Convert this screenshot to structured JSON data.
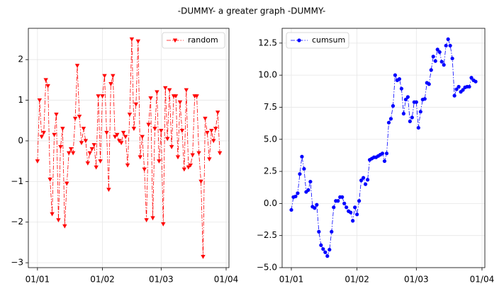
{
  "title": "-DUMMY-  a greater graph -DUMMY-",
  "chart_data": [
    {
      "type": "line",
      "x": [
        0,
        1,
        2,
        3,
        4,
        5,
        6,
        7,
        8,
        9,
        10,
        11,
        12,
        13,
        14,
        15,
        16,
        17,
        18,
        19,
        20,
        21,
        22,
        23,
        24,
        25,
        26,
        27,
        28,
        29,
        30,
        31,
        32,
        33,
        34,
        35,
        36,
        37,
        38,
        39,
        40,
        41,
        42,
        43,
        44,
        45,
        46,
        47,
        48,
        49,
        50,
        51,
        52,
        53,
        54,
        55,
        56,
        57,
        58,
        59,
        60,
        61,
        62,
        63,
        64,
        65,
        66,
        67,
        68,
        69,
        70,
        71,
        72,
        73,
        74,
        75,
        76,
        77,
        78,
        79,
        80,
        81,
        82,
        83,
        84,
        85,
        86,
        87
      ],
      "series": [
        {
          "name": "random",
          "color": "#ff0000",
          "marker": "triangle-down",
          "linestyle": "dashdot",
          "values": [
            -0.5,
            1.0,
            0.1,
            0.2,
            1.5,
            1.35,
            -0.95,
            -1.8,
            0.15,
            0.65,
            -1.95,
            -0.15,
            0.3,
            -2.1,
            -1.05,
            -0.3,
            -0.2,
            -0.3,
            0.55,
            1.85,
            0.6,
            -0.05,
            0.3,
            0.0,
            -0.55,
            -0.3,
            -0.2,
            -0.1,
            -0.65,
            1.1,
            -0.5,
            1.1,
            1.6,
            0.2,
            -1.2,
            1.4,
            1.6,
            0.1,
            0.15,
            0.0,
            -0.05,
            0.2,
            0.1,
            -0.6,
            0.65,
            2.5,
            0.3,
            0.9,
            2.45,
            -0.4,
            0.1,
            -0.7,
            -1.95,
            0.4,
            1.05,
            -1.9,
            0.3,
            1.2,
            -0.5,
            0.25,
            -2.05,
            1.3,
            0.05,
            1.25,
            -0.15,
            1.1,
            1.1,
            -0.4,
            0.95,
            0.25,
            -0.7,
            1.25,
            -0.65,
            -0.6,
            -0.35,
            1.1,
            1.1,
            -0.3,
            -1.0,
            -2.85,
            0.55,
            0.2,
            -0.45,
            0.25,
            0.0,
            0.3,
            0.7,
            -0.3
          ]
        }
      ],
      "xlim": [
        -4.35,
        91.35
      ],
      "xticks": [
        {
          "value": 0,
          "label": "01/01"
        },
        {
          "value": 31,
          "label": "01/02"
        },
        {
          "value": 59,
          "label": "01/03"
        },
        {
          "value": 90,
          "label": "01/04"
        }
      ],
      "ylim": [
        -3.12,
        2.77
      ],
      "yticks": [
        {
          "value": -3,
          "label": "−3"
        },
        {
          "value": -2,
          "label": "−2"
        },
        {
          "value": -1,
          "label": "−1"
        },
        0,
        1,
        2
      ],
      "grid": true,
      "legend": "upper right"
    },
    {
      "type": "line",
      "x": [
        0,
        1,
        2,
        3,
        4,
        5,
        6,
        7,
        8,
        9,
        10,
        11,
        12,
        13,
        14,
        15,
        16,
        17,
        18,
        19,
        20,
        21,
        22,
        23,
        24,
        25,
        26,
        27,
        28,
        29,
        30,
        31,
        32,
        33,
        34,
        35,
        36,
        37,
        38,
        39,
        40,
        41,
        42,
        43,
        44,
        45,
        46,
        47,
        48,
        49,
        50,
        51,
        52,
        53,
        54,
        55,
        56,
        57,
        58,
        59,
        60,
        61,
        62,
        63,
        64,
        65,
        66,
        67,
        68,
        69,
        70,
        71,
        72,
        73,
        74,
        75,
        76,
        77,
        78,
        79,
        80,
        81,
        82,
        83,
        84,
        85,
        86,
        87
      ],
      "series": [
        {
          "name": "cumsum",
          "color": "#0000ff",
          "marker": "circle",
          "linestyle": "dashdot",
          "values": [
            -0.5,
            0.5,
            0.55,
            0.8,
            2.3,
            3.65,
            2.7,
            0.9,
            1.05,
            1.7,
            -0.25,
            -0.35,
            -0.1,
            -2.2,
            -3.25,
            -3.55,
            -3.8,
            -4.1,
            -3.6,
            -2.2,
            -0.3,
            0.2,
            0.2,
            0.5,
            0.5,
            0.0,
            -0.3,
            -0.6,
            -0.7,
            -1.35,
            -0.3,
            -0.85,
            0.2,
            1.8,
            2.0,
            1.5,
            1.85,
            3.4,
            3.5,
            3.6,
            3.6,
            3.7,
            3.8,
            3.9,
            3.3,
            3.9,
            6.3,
            6.6,
            7.6,
            10.0,
            9.6,
            9.7,
            8.95,
            7.0,
            8.1,
            8.3,
            6.4,
            6.7,
            7.9,
            7.9,
            5.9,
            7.15,
            8.1,
            8.15,
            9.4,
            9.3,
            10.4,
            11.45,
            11.1,
            12.0,
            11.8,
            11.05,
            10.8,
            12.3,
            12.8,
            12.3,
            11.3,
            8.4,
            8.9,
            9.1,
            8.7,
            8.85,
            9.05,
            9.1,
            9.1,
            9.8,
            9.6,
            9.5
          ]
        }
      ],
      "xlim": [
        -4.35,
        91.35
      ],
      "xticks": [
        {
          "value": 0,
          "label": "01/01"
        },
        {
          "value": 31,
          "label": "01/02"
        },
        {
          "value": 59,
          "label": "01/03"
        },
        {
          "value": 90,
          "label": "01/04"
        }
      ],
      "ylim": [
        -5.0,
        13.65
      ],
      "yticks": [
        {
          "value": -5.0,
          "label": "−5.0"
        },
        {
          "value": -2.5,
          "label": "−2.5"
        },
        {
          "value": 0,
          "label": "0.0"
        },
        2.5,
        {
          "value": 5,
          "label": "5.0"
        },
        7.5,
        {
          "value": 10,
          "label": "10.0"
        },
        12.5
      ],
      "grid": true,
      "legend": "upper left"
    }
  ]
}
